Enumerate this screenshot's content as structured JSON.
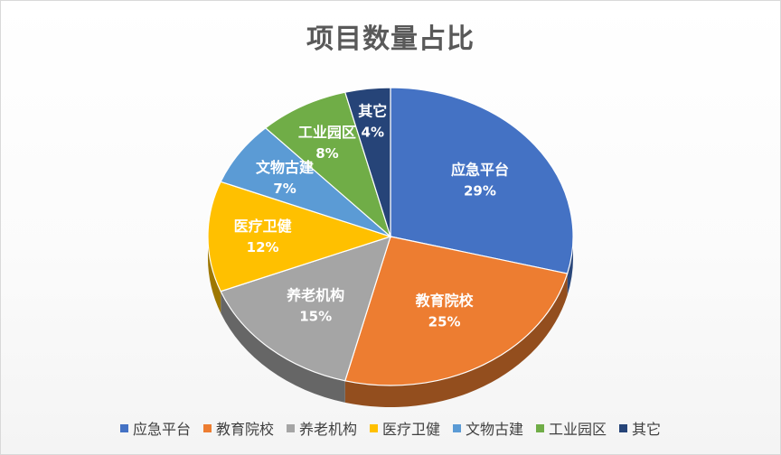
{
  "chart_data": {
    "type": "pie",
    "title": "项目数量占比",
    "categories": [
      "应急平台",
      "教育院校",
      "养老机构",
      "医疗卫健",
      "文物古建",
      "工业园区",
      "其它"
    ],
    "values": [
      29,
      25,
      15,
      12,
      7,
      8,
      4
    ],
    "data_labels": [
      "29%",
      "25%",
      "15%",
      "12%",
      "7%",
      "8%",
      "4%"
    ],
    "colors": [
      "#4472C4",
      "#ED7D31",
      "#A5A5A5",
      "#FFC000",
      "#5B9BD5",
      "#70AD47",
      "#264478"
    ],
    "legend_position": "bottom",
    "style": "3d"
  }
}
